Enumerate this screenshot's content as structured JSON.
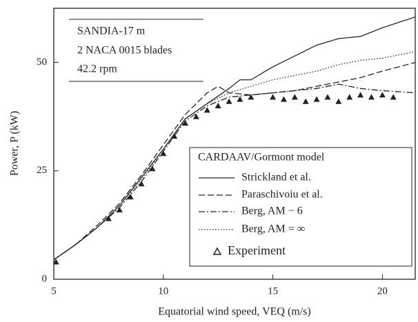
{
  "chart_data": {
    "type": "line",
    "annotation_lines": [
      "SANDIA-17 m",
      "2 NACA 0015 blades",
      "42.2 rpm"
    ],
    "xlabel": "Equatorial wind speed, VEQ (m/s)",
    "ylabel": "Power, P (kW)",
    "legend_title": "CARDAAV/Gormont model",
    "legend": "lower right",
    "xlim": [
      5,
      21.5
    ],
    "ylim": [
      0,
      62.5
    ],
    "xticks": [
      5,
      10,
      15,
      20
    ],
    "yticks": [
      0,
      25,
      50
    ],
    "series": [
      {
        "name": "Strickland et al.",
        "color": "#222",
        "dash": "solid",
        "x": [
          5,
          6,
          7,
          8,
          9,
          10,
          11,
          12,
          13,
          13.5,
          14,
          15,
          16,
          17,
          18,
          19,
          20,
          21.5
        ],
        "values": [
          4.5,
          8,
          12,
          17,
          23.5,
          30,
          37,
          40.5,
          44,
          46,
          46,
          49,
          51.5,
          54,
          55.5,
          56,
          58,
          60.5
        ]
      },
      {
        "name": "Paraschivoiu et al.",
        "color": "#222",
        "dash": "dashed",
        "x": [
          5,
          6,
          7,
          8,
          9,
          10,
          11,
          12,
          12.5,
          13,
          14,
          15,
          16,
          17,
          18,
          19,
          20,
          21.5
        ],
        "values": [
          4.5,
          8,
          12.5,
          17.5,
          24,
          31,
          38,
          43,
          44.5,
          43,
          42.5,
          43,
          43.5,
          44.5,
          45.5,
          46.5,
          48,
          50
        ]
      },
      {
        "name": "Berg, AM − 6",
        "color": "#222",
        "dash": "dashdot",
        "x": [
          5,
          6,
          7,
          8,
          9,
          10,
          11,
          12,
          13,
          14,
          15,
          16,
          17,
          18,
          19,
          20,
          21.5
        ],
        "values": [
          4.5,
          8,
          12,
          16.5,
          22.5,
          29.5,
          36.5,
          40,
          42,
          42.5,
          43,
          43.5,
          44,
          45,
          44,
          43.5,
          43
        ]
      },
      {
        "name": "Berg, AM = ∞",
        "color": "#222",
        "dash": "dotted",
        "x": [
          5,
          6,
          7,
          8,
          9,
          10,
          11,
          12,
          13,
          14,
          15,
          16,
          17,
          18,
          19,
          20,
          21.5
        ],
        "values": [
          4.5,
          8,
          12,
          17,
          23,
          30,
          37,
          40.5,
          43,
          44.5,
          46,
          47,
          48,
          49.5,
          50.5,
          51,
          52.5
        ]
      },
      {
        "name": "Experiment",
        "color": "#222",
        "marker": "triangle",
        "x": [
          5.1,
          7.5,
          8,
          8.5,
          9,
          9.5,
          10,
          10.5,
          11,
          11.5,
          12,
          12.5,
          13,
          13.5,
          14,
          15,
          15.5,
          16,
          16.5,
          17,
          17.5,
          18,
          18.5,
          19,
          19.5,
          20,
          20.5
        ],
        "values": [
          4,
          14,
          16,
          19,
          22,
          25.5,
          29,
          33,
          36,
          37.5,
          39,
          40,
          41,
          41.5,
          42,
          42,
          41.5,
          42,
          41,
          41.5,
          42,
          41,
          42,
          42.5,
          42,
          42.5,
          42
        ]
      }
    ]
  }
}
